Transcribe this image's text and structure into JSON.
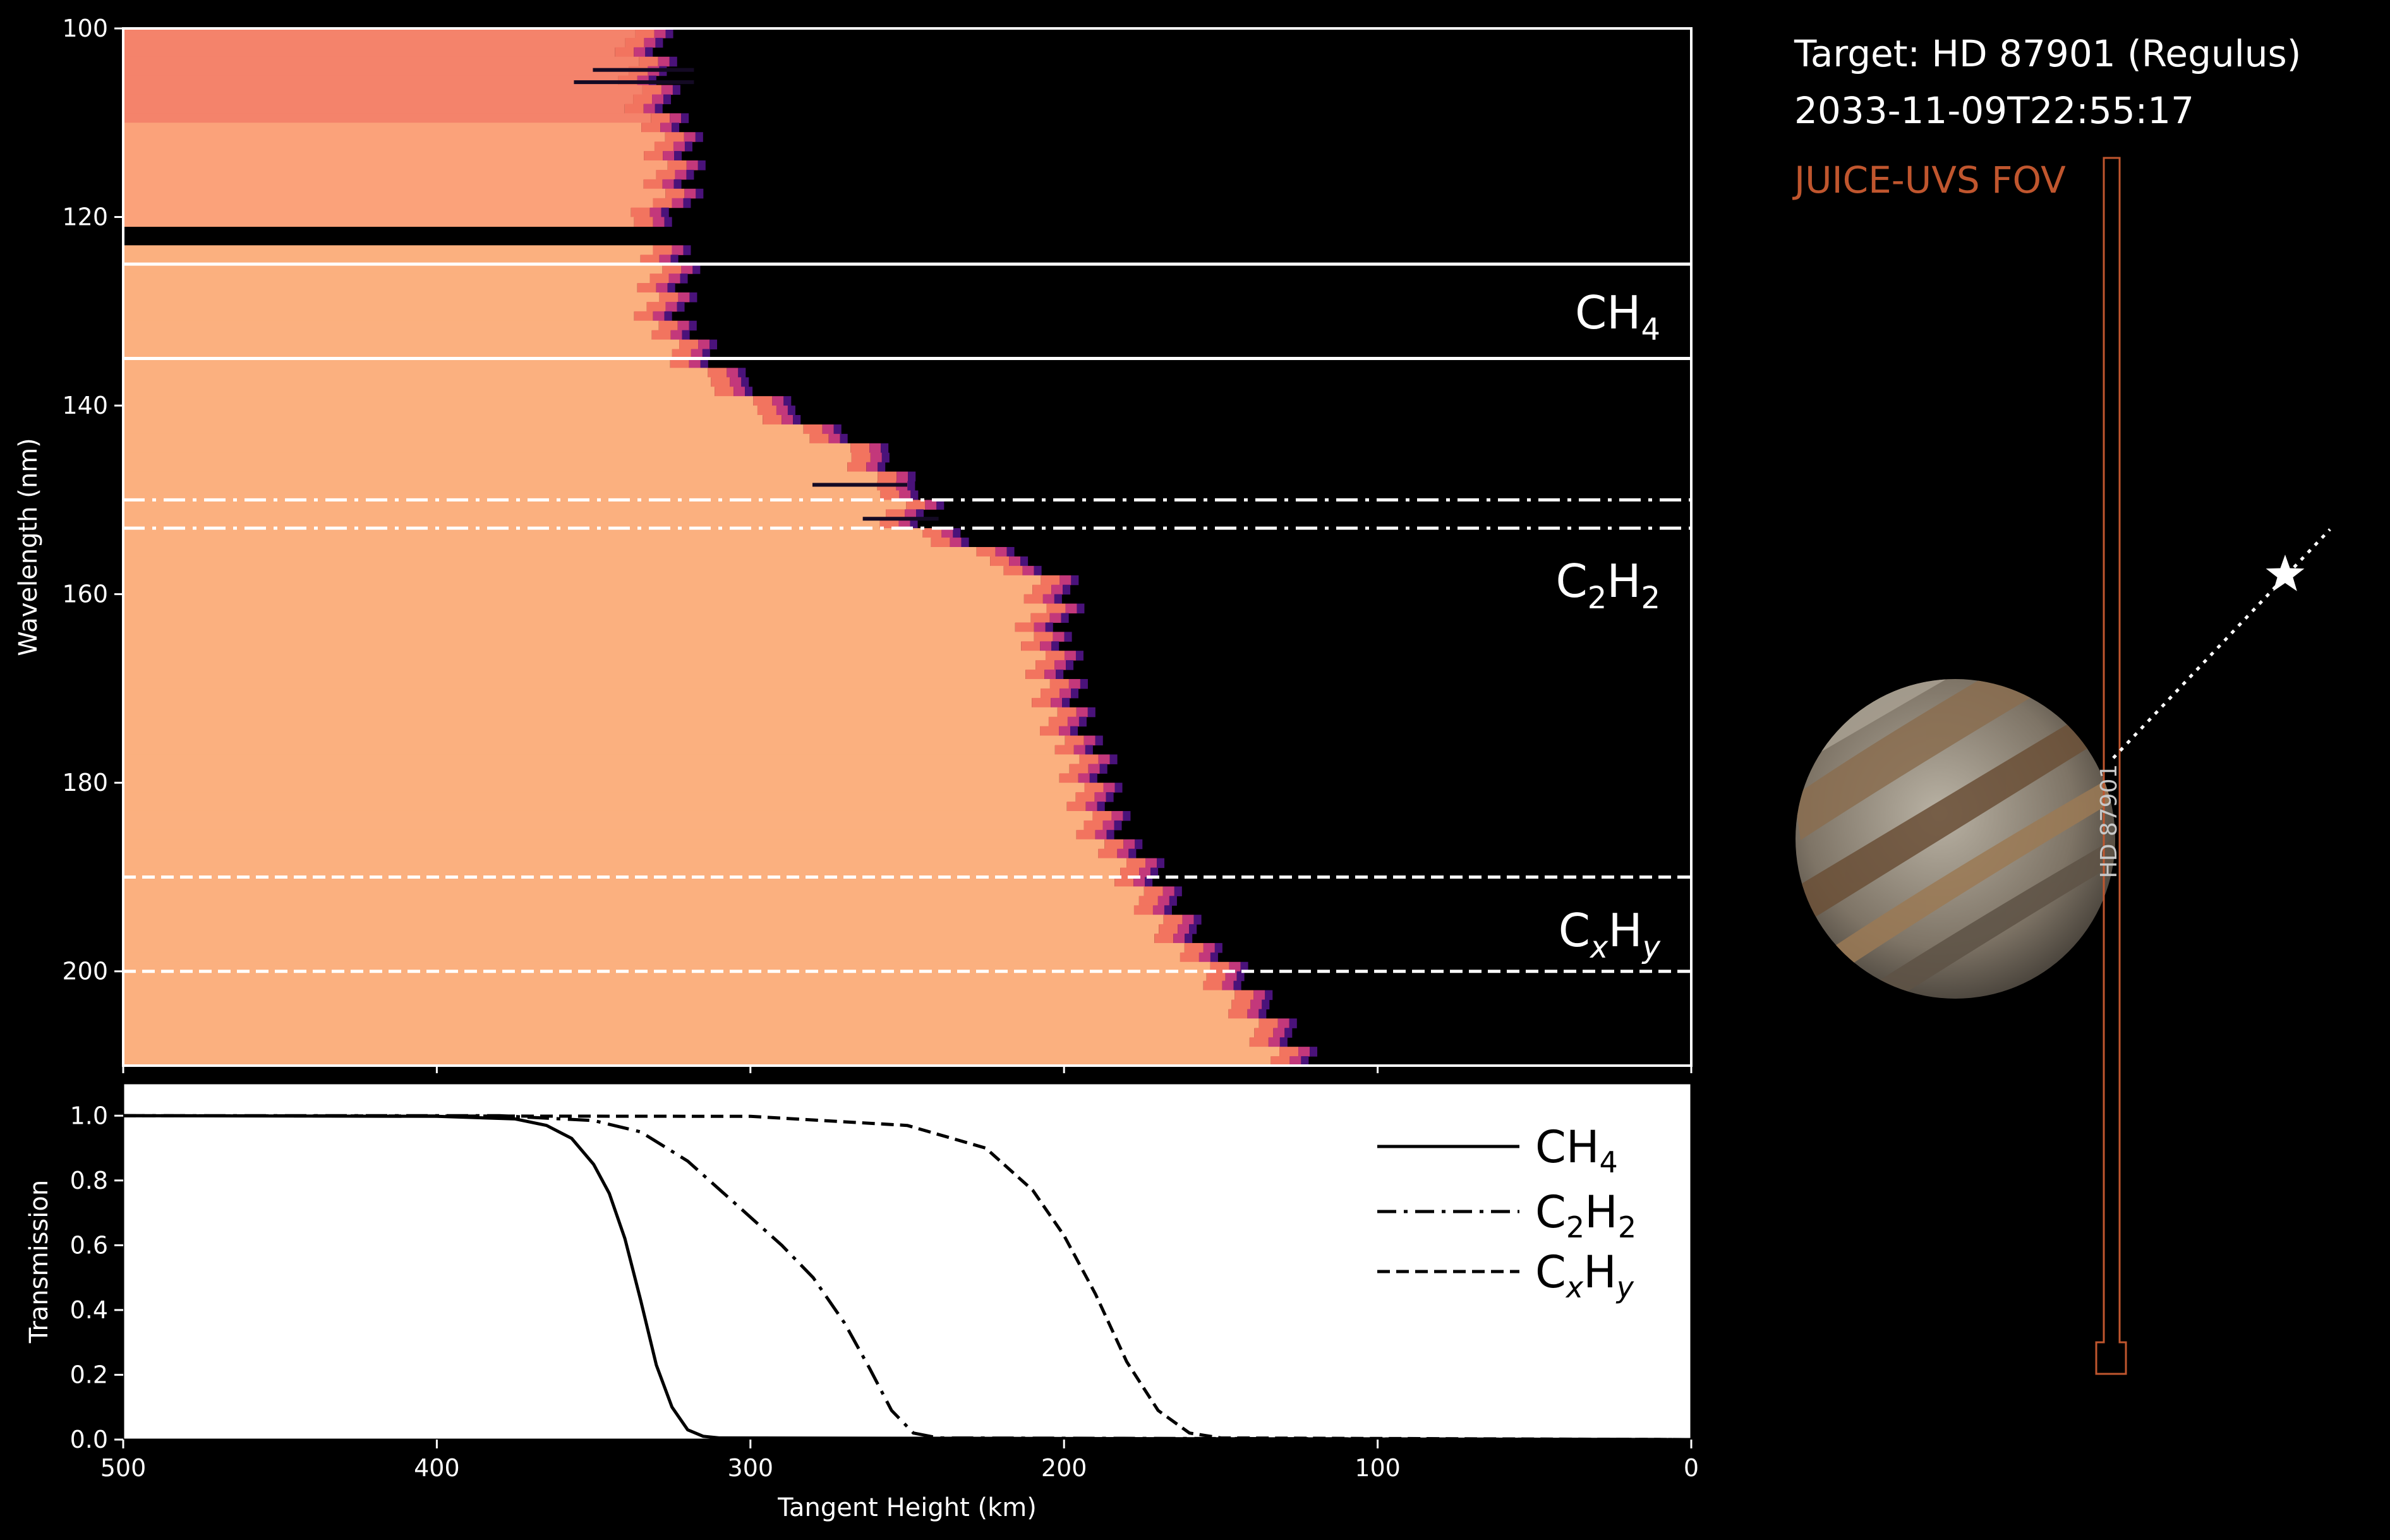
{
  "info": {
    "target": "Target: HD 87901 (Regulus)",
    "timestamp": "2033-11-09T22:55:17",
    "fov_label": "JUICE-UVS FOV",
    "star_label": "HD 87901",
    "fov_color": "#c0562e"
  },
  "chart_data": [
    {
      "type": "heatmap",
      "title": "",
      "xlabel": "",
      "ylabel": "Wavelength (nm)",
      "xlim": [
        500,
        0
      ],
      "ylim": [
        210,
        100
      ],
      "yticks": [
        "100",
        "120",
        "140",
        "160",
        "180",
        "200"
      ],
      "colormap": "magma",
      "cutoff_profile": {
        "description": "tangent height (km) below which signal is fully absorbed, per wavelength (nm)",
        "wavelength": [
          100,
          104,
          107,
          110,
          115,
          119,
          121,
          123,
          127,
          131,
          135,
          138,
          141,
          145,
          148,
          150,
          152,
          155,
          158,
          161,
          165,
          170,
          175,
          180,
          185,
          190,
          195,
          200,
          205,
          209
        ],
        "height": [
          330,
          327,
          325,
          321,
          318,
          318,
          330,
          320,
          320,
          320,
          313,
          298,
          282,
          258,
          250,
          240,
          245,
          225,
          200,
          196,
          200,
          196,
          190,
          186,
          180,
          170,
          158,
          145,
          130,
          120
        ]
      },
      "band_lines": [
        {
          "y": 125,
          "style": "solid"
        },
        {
          "y": 135,
          "style": "solid"
        },
        {
          "y": 150,
          "style": "dashdot"
        },
        {
          "y": 153,
          "style": "dashdot"
        },
        {
          "y": 190,
          "style": "dashed"
        },
        {
          "y": 200,
          "style": "dashed"
        }
      ],
      "band_labels": [
        {
          "text": "CH4",
          "base": "CH",
          "sub": "4"
        },
        {
          "text": "C2H2",
          "base": "C",
          "sub1": "2",
          "mid": "H",
          "sub2": "2"
        },
        {
          "text": "CxHy",
          "base": "C",
          "sub1": "x",
          "mid": "H",
          "sub2": "y"
        }
      ]
    },
    {
      "type": "line",
      "title": "",
      "xlabel": "Tangent Height (km)",
      "ylabel": "Transmission",
      "xlim": [
        500,
        0
      ],
      "ylim": [
        0,
        1.1
      ],
      "xticks": [
        "500",
        "400",
        "300",
        "200",
        "100",
        "0"
      ],
      "yticks": [
        "0.0",
        "0.2",
        "0.4",
        "0.6",
        "0.8",
        "1.0"
      ],
      "legend_position": "top-right",
      "series": [
        {
          "name": "CH4",
          "style": "solid",
          "x": [
            500,
            400,
            375,
            365,
            357,
            350,
            345,
            340,
            335,
            330,
            325,
            320,
            315,
            310,
            0
          ],
          "y": [
            1.0,
            0.998,
            0.99,
            0.97,
            0.93,
            0.85,
            0.76,
            0.62,
            0.43,
            0.23,
            0.1,
            0.03,
            0.01,
            0.005,
            0.0
          ]
        },
        {
          "name": "C2H2",
          "style": "dashdot",
          "x": [
            500,
            380,
            350,
            335,
            320,
            305,
            290,
            280,
            270,
            262,
            255,
            248,
            240,
            0
          ],
          "y": [
            1.0,
            1.0,
            0.985,
            0.95,
            0.86,
            0.73,
            0.6,
            0.5,
            0.36,
            0.22,
            0.09,
            0.02,
            0.005,
            0.0
          ]
        },
        {
          "name": "CxHy",
          "style": "dashed",
          "x": [
            500,
            300,
            250,
            225,
            210,
            200,
            190,
            180,
            170,
            160,
            150,
            0
          ],
          "y": [
            1.0,
            0.998,
            0.97,
            0.9,
            0.77,
            0.63,
            0.45,
            0.24,
            0.09,
            0.02,
            0.005,
            0.0
          ]
        }
      ],
      "legend_entries": [
        {
          "text": "CH4",
          "base": "CH",
          "sub": "4"
        },
        {
          "text": "C2H2",
          "base": "C",
          "sub1": "2",
          "mid": "H",
          "sub2": "2"
        },
        {
          "text": "CxHy",
          "base": "C",
          "sub1": "x",
          "mid": "H",
          "sub2": "y"
        }
      ]
    }
  ]
}
